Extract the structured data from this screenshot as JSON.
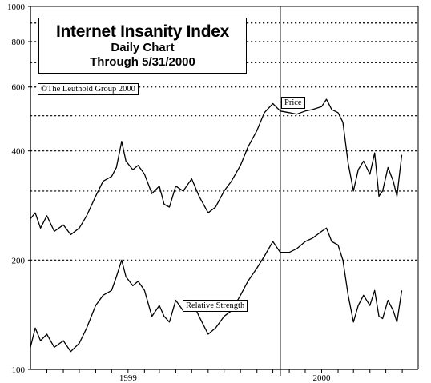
{
  "title_box": {
    "title": "Internet Insanity Index",
    "subtitle_1": "Daily Chart",
    "subtitle_2": "Through 5/31/2000"
  },
  "copyright": "©The Leuthold Group 2000",
  "chart_data": {
    "type": "line",
    "title": "Internet Insanity Index",
    "y_scale": "log",
    "ylim": [
      100,
      1000
    ],
    "y_ticks": [
      {
        "value": 100,
        "label": "100"
      },
      {
        "value": 200,
        "label": "200"
      },
      {
        "value": 400,
        "label": "400"
      },
      {
        "value": 600,
        "label": "600"
      },
      {
        "value": 800,
        "label": "800"
      },
      {
        "value": 1000,
        "label": "1000"
      }
    ],
    "dotted_gridlines": [
      200,
      310,
      400,
      500,
      600,
      700,
      800,
      900
    ],
    "xlim": [
      "1998-07-01",
      "2000-07-01"
    ],
    "x_labels": [
      {
        "date": "1999-01-01",
        "label": "1999"
      },
      {
        "date": "2000-01-01",
        "label": "2000"
      }
    ],
    "x_ticks": [
      "1998-08-01",
      "1998-09-01",
      "1998-10-01",
      "1998-11-01",
      "1998-12-01",
      "1999-01-01",
      "1999-02-01",
      "1999-03-01",
      "1999-04-01",
      "1999-05-01",
      "1999-06-01",
      "1999-07-01",
      "1999-08-01",
      "1999-09-01",
      "1999-10-01",
      "1999-11-01",
      "1999-12-01",
      "2000-01-01",
      "2000-02-01",
      "2000-03-01",
      "2000-04-01",
      "2000-05-01",
      "2000-06-01"
    ],
    "vertical_marker": "1999-10-15",
    "series": [
      {
        "name": "Price",
        "color": "#000000",
        "points": [
          [
            "1998-07-01",
            260
          ],
          [
            "1998-07-10",
            270
          ],
          [
            "1998-07-20",
            245
          ],
          [
            "1998-08-01",
            265
          ],
          [
            "1998-08-15",
            240
          ],
          [
            "1998-09-01",
            250
          ],
          [
            "1998-09-15",
            235
          ],
          [
            "1998-10-01",
            245
          ],
          [
            "1998-10-15",
            265
          ],
          [
            "1998-11-01",
            300
          ],
          [
            "1998-11-15",
            330
          ],
          [
            "1998-12-01",
            340
          ],
          [
            "1998-12-10",
            360
          ],
          [
            "1998-12-20",
            425
          ],
          [
            "1998-12-28",
            375
          ],
          [
            "1999-01-10",
            355
          ],
          [
            "1999-01-20",
            365
          ],
          [
            "1999-02-01",
            345
          ],
          [
            "1999-02-15",
            305
          ],
          [
            "1999-03-01",
            320
          ],
          [
            "1999-03-10",
            285
          ],
          [
            "1999-03-20",
            280
          ],
          [
            "1999-04-01",
            320
          ],
          [
            "1999-04-15",
            310
          ],
          [
            "1999-05-01",
            335
          ],
          [
            "1999-05-15",
            300
          ],
          [
            "1999-06-01",
            270
          ],
          [
            "1999-06-15",
            280
          ],
          [
            "1999-07-01",
            310
          ],
          [
            "1999-07-15",
            330
          ],
          [
            "1999-08-01",
            365
          ],
          [
            "1999-08-15",
            410
          ],
          [
            "1999-09-01",
            455
          ],
          [
            "1999-09-15",
            510
          ],
          [
            "1999-10-01",
            540
          ],
          [
            "1999-10-15",
            515
          ],
          [
            "1999-11-01",
            510
          ],
          [
            "1999-11-15",
            505
          ],
          [
            "1999-12-01",
            515
          ],
          [
            "1999-12-15",
            520
          ],
          [
            "2000-01-01",
            530
          ],
          [
            "2000-01-10",
            555
          ],
          [
            "2000-01-20",
            520
          ],
          [
            "2000-02-01",
            510
          ],
          [
            "2000-02-10",
            480
          ],
          [
            "2000-02-20",
            370
          ],
          [
            "2000-03-01",
            310
          ],
          [
            "2000-03-10",
            355
          ],
          [
            "2000-03-20",
            375
          ],
          [
            "2000-04-01",
            345
          ],
          [
            "2000-04-10",
            395
          ],
          [
            "2000-04-18",
            300
          ],
          [
            "2000-04-25",
            310
          ],
          [
            "2000-05-05",
            360
          ],
          [
            "2000-05-15",
            330
          ],
          [
            "2000-05-22",
            300
          ],
          [
            "2000-05-31",
            390
          ]
        ]
      },
      {
        "name": "Relative Strength",
        "color": "#000000",
        "points": [
          [
            "1998-07-01",
            115
          ],
          [
            "1998-07-10",
            130
          ],
          [
            "1998-07-20",
            120
          ],
          [
            "1998-08-01",
            125
          ],
          [
            "1998-08-15",
            115
          ],
          [
            "1998-09-01",
            120
          ],
          [
            "1998-09-15",
            112
          ],
          [
            "1998-10-01",
            118
          ],
          [
            "1998-10-15",
            130
          ],
          [
            "1998-11-01",
            150
          ],
          [
            "1998-11-15",
            160
          ],
          [
            "1998-12-01",
            165
          ],
          [
            "1998-12-10",
            180
          ],
          [
            "1998-12-20",
            200
          ],
          [
            "1998-12-28",
            180
          ],
          [
            "1999-01-10",
            170
          ],
          [
            "1999-01-20",
            175
          ],
          [
            "1999-02-01",
            165
          ],
          [
            "1999-02-15",
            140
          ],
          [
            "1999-03-01",
            150
          ],
          [
            "1999-03-10",
            140
          ],
          [
            "1999-03-20",
            135
          ],
          [
            "1999-04-01",
            155
          ],
          [
            "1999-04-15",
            145
          ],
          [
            "1999-05-01",
            155
          ],
          [
            "1999-05-15",
            140
          ],
          [
            "1999-06-01",
            125
          ],
          [
            "1999-06-15",
            130
          ],
          [
            "1999-07-01",
            140
          ],
          [
            "1999-07-15",
            145
          ],
          [
            "1999-08-01",
            160
          ],
          [
            "1999-08-15",
            175
          ],
          [
            "1999-09-01",
            190
          ],
          [
            "1999-09-15",
            205
          ],
          [
            "1999-10-01",
            225
          ],
          [
            "1999-10-15",
            210
          ],
          [
            "1999-11-01",
            210
          ],
          [
            "1999-11-15",
            215
          ],
          [
            "1999-12-01",
            225
          ],
          [
            "1999-12-15",
            230
          ],
          [
            "2000-01-01",
            240
          ],
          [
            "2000-01-10",
            245
          ],
          [
            "2000-01-20",
            225
          ],
          [
            "2000-02-01",
            220
          ],
          [
            "2000-02-10",
            200
          ],
          [
            "2000-02-20",
            160
          ],
          [
            "2000-03-01",
            135
          ],
          [
            "2000-03-10",
            150
          ],
          [
            "2000-03-20",
            160
          ],
          [
            "2000-04-01",
            150
          ],
          [
            "2000-04-10",
            165
          ],
          [
            "2000-04-18",
            140
          ],
          [
            "2000-04-25",
            138
          ],
          [
            "2000-05-05",
            155
          ],
          [
            "2000-05-15",
            145
          ],
          [
            "2000-05-22",
            135
          ],
          [
            "2000-05-31",
            165
          ]
        ]
      }
    ],
    "legend": [
      {
        "label": "Price",
        "series": "Price"
      },
      {
        "label": "Relative Strength",
        "series": "Relative Strength"
      }
    ],
    "grid": true
  }
}
